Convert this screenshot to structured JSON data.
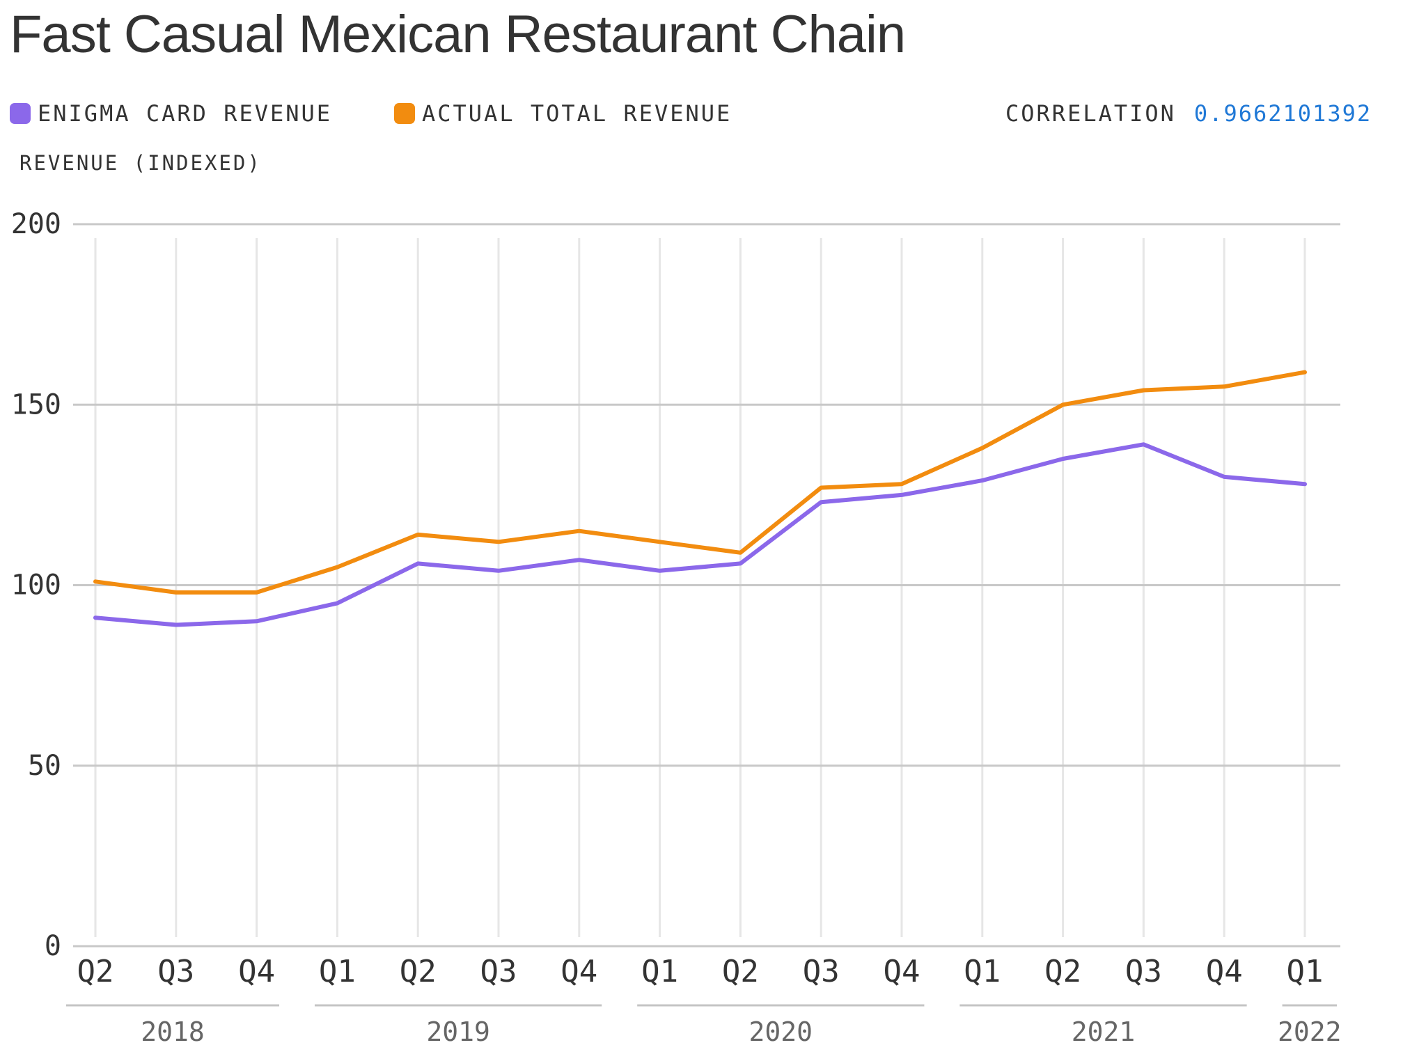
{
  "chart_data": {
    "type": "line",
    "title": "Fast Casual Mexican Restaurant Chain",
    "ylabel": "REVENUE (INDEXED)",
    "ylim": [
      0,
      200
    ],
    "yticks": [
      "0",
      "50",
      "100",
      "150",
      "200"
    ],
    "grid": true,
    "legend_position": "top-left",
    "categories": [
      "Q2",
      "Q3",
      "Q4",
      "Q1",
      "Q2",
      "Q3",
      "Q4",
      "Q1",
      "Q2",
      "Q3",
      "Q4",
      "Q1",
      "Q2",
      "Q3",
      "Q4",
      "Q1"
    ],
    "years": [
      {
        "label": "2018",
        "start": 0,
        "end": 2
      },
      {
        "label": "2019",
        "start": 3,
        "end": 6
      },
      {
        "label": "2020",
        "start": 7,
        "end": 10
      },
      {
        "label": "2021",
        "start": 11,
        "end": 14
      },
      {
        "label": "2022",
        "start": 15,
        "end": 15
      }
    ],
    "series": [
      {
        "name": "ENIGMA CARD REVENUE",
        "color": "#8b68ea",
        "values": [
          91,
          89,
          90,
          95,
          106,
          104,
          107,
          104,
          106,
          123,
          125,
          129,
          135,
          139,
          130,
          128
        ]
      },
      {
        "name": "ACTUAL TOTAL REVENUE",
        "color": "#f28c0f",
        "values": [
          101,
          98,
          98,
          105,
          114,
          112,
          115,
          112,
          109,
          127,
          128,
          138,
          150,
          154,
          155,
          159
        ]
      }
    ],
    "correlation_label": "CORRELATION",
    "correlation_value": "0.9662101392"
  }
}
